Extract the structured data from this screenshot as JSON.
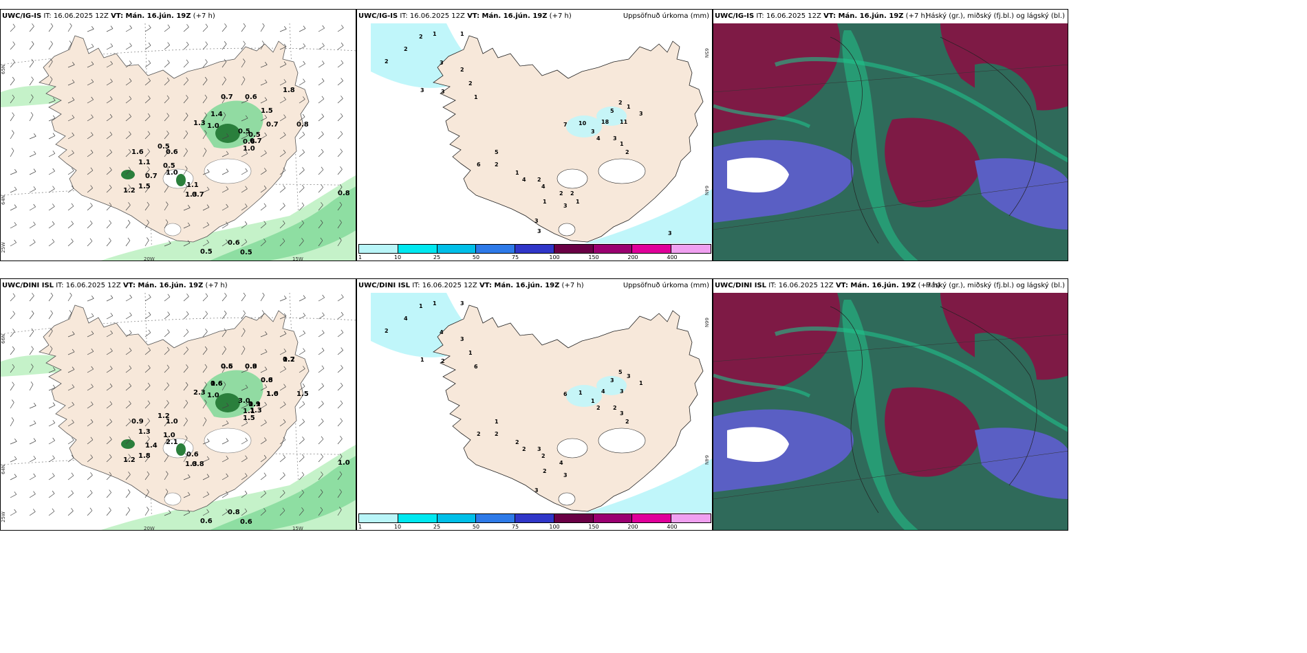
{
  "rows": [
    {
      "model": "UWC/IG-IS",
      "init_prefix": "IT: 16.06.2025 12Z",
      "valid_label": "VT: Mán. 16.jún. 19Z",
      "lead": "(+7 h)",
      "precip_title": "Uppsöfnuð úrkoma (mm)",
      "cloud_title": "Háský (gr.), miðský (fj.bl.) og lágský (bl.)",
      "wind_values": [
        "1.8",
        "0.7",
        "1.4",
        "0.6",
        "1.5",
        "0.7",
        "0.5",
        "0.8",
        "1.3",
        "1.0",
        "0.5",
        "0.6",
        "1.0",
        "0.5",
        "0.6",
        "1.6",
        "1.1",
        "0.5",
        "1.0",
        "0.7",
        "1.5",
        "1.2",
        "1.1",
        "1.3",
        "0.7",
        "0.8",
        "0.5",
        "0.6",
        "0.5",
        "0.7"
      ],
      "precip_values": [
        "2",
        "1",
        "2",
        "2",
        "3",
        "1",
        "3",
        "3",
        "2",
        "2",
        "1",
        "5",
        "2",
        "1",
        "18",
        "11",
        "3",
        "7",
        "10",
        "3",
        "4",
        "3",
        "1",
        "2",
        "5",
        "2",
        "6",
        "1",
        "4",
        "2",
        "4",
        "1",
        "2",
        "3",
        "3",
        "3",
        "3",
        "1",
        "1",
        "2",
        "1"
      ],
      "coords": {
        "lat1": "65N",
        "lat2": "64N",
        "lon1": "20W",
        "lon2": "15W",
        "lon3": "25W"
      }
    },
    {
      "model": "UWC/DINI ISL",
      "init_prefix": "IT: 16.06.2025 12Z",
      "valid_label": "VT: Mán. 16.jún. 19Z",
      "lead": "(+7 h)",
      "precip_title": "Uppsöfnuð úrkoma (mm)",
      "cloud_title": "Háský (gr.), miðský (fj.bl.) og lágský (bl.)",
      "wind_values": [
        "0.7",
        "0.5",
        "0.6",
        "0.8",
        "0.8",
        "1.6",
        "0.9",
        "1.5",
        "2.3",
        "1.0",
        "3.0",
        "1.1",
        "1.5",
        "1.2",
        "1.0",
        "0.9",
        "1.3",
        "1.0",
        "2.1",
        "1.4",
        "1.8",
        "1.2",
        "0.6",
        "1.3",
        "0.8",
        "1.0",
        "0.6",
        "0.8",
        "0.6",
        "1.3",
        "1.2",
        "0.6",
        "1.6",
        "0.9",
        "0.6",
        "1.0",
        "1.1"
      ],
      "precip_values": [
        "1",
        "1",
        "4",
        "2",
        "4",
        "3",
        "1",
        "2",
        "3",
        "1",
        "6",
        "3",
        "5",
        "3",
        "4",
        "3",
        "1",
        "6",
        "1",
        "1",
        "2",
        "2",
        "3",
        "2",
        "1",
        "2",
        "2",
        "2",
        "2",
        "3",
        "2",
        "2",
        "4",
        "3",
        "3"
      ],
      "coords": {
        "lat1": "66N",
        "lat2": "64N",
        "lon1": "20W",
        "lon2": "15W",
        "lon3": "25W"
      }
    }
  ],
  "legend": {
    "ticks": [
      "1",
      "10",
      "25",
      "50",
      "75",
      "100",
      "150",
      "200",
      "400"
    ],
    "colors": [
      "#b9f5f8",
      "#00e8f0",
      "#00bfe8",
      "#2e7ae8",
      "#3036c8",
      "#6a0045",
      "#9a0070",
      "#e0009a",
      "#f0a0f0"
    ]
  },
  "colors": {
    "land": "#f7e8da",
    "wind_light": "#c5f2c9",
    "wind_mid": "#7fd898",
    "wind_dark": "#2a7f3c",
    "precip_light": "#c0f6fa",
    "cloud_high": "#7e1a45",
    "cloud_mid": "#5a5fc4",
    "cloud_low": "#2f6a5a",
    "cloud_green": "#20c28a"
  }
}
